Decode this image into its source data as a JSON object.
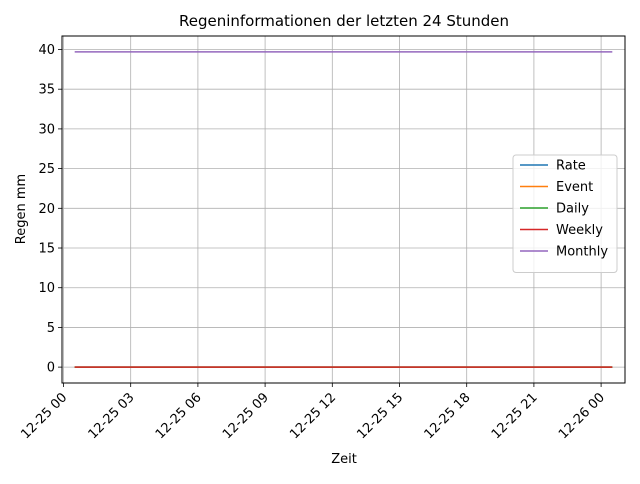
{
  "chart_data": {
    "type": "line",
    "title": "Regeninformationen der letzten 24 Stunden",
    "xlabel": "Zeit",
    "ylabel": "Regen mm",
    "x_start": "12-25 00:30",
    "x_end": "12-26 00:30",
    "xlim": [
      "12-24 23:56",
      "12-26 01:04"
    ],
    "ylim": [
      -2,
      41.7
    ],
    "x_ticks": [
      "12-25 00",
      "12-25 03",
      "12-25 06",
      "12-25 09",
      "12-25 12",
      "12-25 15",
      "12-25 18",
      "12-25 21",
      "12-26 00"
    ],
    "y_ticks": [
      "0",
      "5",
      "10",
      "15",
      "20",
      "25",
      "30",
      "35",
      "40"
    ],
    "grid": true,
    "legend_position": "center-right",
    "series": [
      {
        "name": "Rate",
        "color": "#1f77b4",
        "values": [
          0,
          0
        ]
      },
      {
        "name": "Event",
        "color": "#ff7f0e",
        "values": [
          0,
          0
        ]
      },
      {
        "name": "Daily",
        "color": "#2ca02c",
        "values": [
          0,
          0
        ]
      },
      {
        "name": "Weekly",
        "color": "#d62728",
        "values": [
          0,
          0
        ]
      },
      {
        "name": "Monthly",
        "color": "#9467bd",
        "values": [
          39.7,
          39.7
        ]
      }
    ]
  }
}
